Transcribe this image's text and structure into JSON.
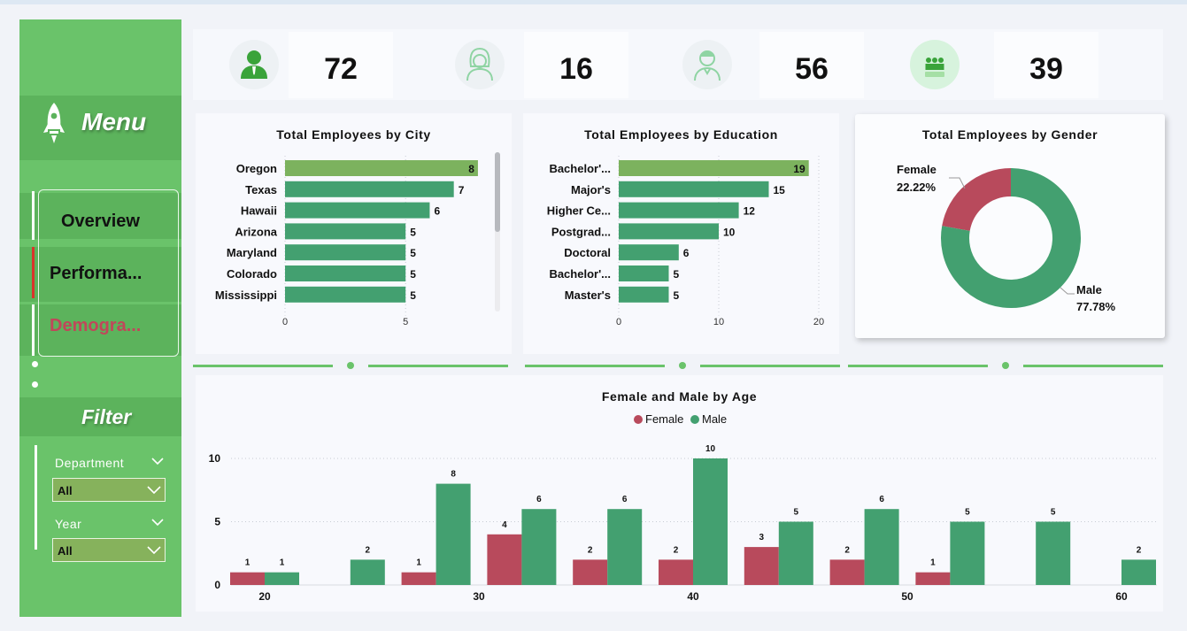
{
  "sidebar": {
    "menu_title": "Menu",
    "nav": [
      {
        "label": "Overview",
        "active": false
      },
      {
        "label": "Performa...",
        "active": true
      },
      {
        "label": "Demogra...",
        "active": false
      }
    ],
    "filter_title": "Filter",
    "filters": [
      {
        "label": "Department",
        "value": "All"
      },
      {
        "label": "Year",
        "value": "All"
      }
    ]
  },
  "kpis": [
    {
      "icon": "employee-icon",
      "value": "72"
    },
    {
      "icon": "female-icon",
      "value": "16"
    },
    {
      "icon": "male-icon",
      "value": "56"
    },
    {
      "icon": "age-group-icon",
      "value": "39"
    }
  ],
  "colors": {
    "female": "#b84a5c",
    "male": "#43a070",
    "highlight": "#7cb25e",
    "sidebar": "#6ac36a"
  },
  "chart_data": [
    {
      "type": "bar",
      "orientation": "horizontal",
      "title": "Total Employees by City",
      "categories": [
        "Oregon",
        "Texas",
        "Hawaii",
        "Arizona",
        "Maryland",
        "Colorado",
        "Mississippi"
      ],
      "values": [
        8,
        7,
        6,
        5,
        5,
        5,
        5
      ],
      "xticks": [
        "0",
        "5"
      ],
      "xlim": [
        0,
        8.7
      ],
      "grid": true
    },
    {
      "type": "bar",
      "orientation": "horizontal",
      "title": "Total Employees by Education",
      "categories": [
        "Bachelor'...",
        "Major's",
        "Higher Ce...",
        "Postgrad...",
        "Doctoral",
        "Bachelor'...",
        "Master's"
      ],
      "values": [
        19,
        15,
        12,
        10,
        6,
        5,
        5
      ],
      "xticks": [
        "0",
        "10",
        "20"
      ],
      "xlim": [
        0,
        20
      ],
      "grid": true
    },
    {
      "type": "pie",
      "donut": true,
      "title": "Total Employees by Gender",
      "slices": [
        {
          "name": "Female",
          "value": 22.22,
          "label": "22.22%"
        },
        {
          "name": "Male",
          "value": 77.78,
          "label": "77.78%"
        }
      ]
    },
    {
      "type": "bar",
      "title": "Female and Male by Age",
      "legend": "top-center",
      "x": [
        20,
        22,
        24,
        26,
        28,
        30,
        32,
        34,
        36,
        38,
        40,
        42,
        44,
        46,
        48,
        50,
        52,
        54,
        56,
        58,
        60
      ],
      "series": [
        {
          "name": "Female",
          "values": [
            1,
            null,
            null,
            null,
            1,
            null,
            4,
            null,
            2,
            null,
            2,
            null,
            3,
            null,
            2,
            null,
            1,
            null,
            null,
            null,
            null
          ]
        },
        {
          "name": "Male",
          "values": [
            1,
            null,
            2,
            null,
            8,
            null,
            6,
            null,
            6,
            null,
            10,
            null,
            5,
            null,
            6,
            null,
            5,
            null,
            5,
            null,
            2
          ]
        }
      ],
      "xticks": [
        "20",
        "30",
        "40",
        "50",
        "60"
      ],
      "yticks": [
        "0",
        "5",
        "10"
      ],
      "ylim": [
        0,
        10
      ],
      "grid": true
    }
  ]
}
